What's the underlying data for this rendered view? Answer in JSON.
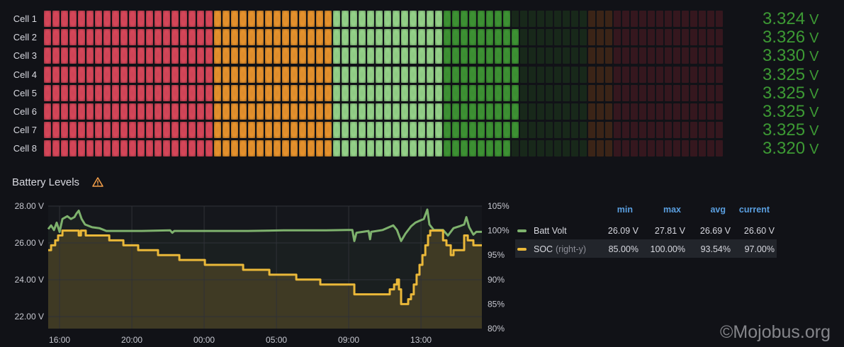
{
  "bar_gauge": {
    "segment_count": 80,
    "bands": [
      {
        "segments": 20,
        "lit": "#d8475a",
        "dim": "#38181f"
      },
      {
        "segments": 14,
        "lit": "#e8932d",
        "dim": "#3b2417"
      },
      {
        "segments": 13,
        "lit": "#96d48a",
        "dim": "#1c2a1c"
      },
      {
        "segments": 17,
        "lit": "#3e9434",
        "dim": "#18281a"
      },
      {
        "segments": 3,
        "lit": "#e8932d",
        "dim": "#3b2417"
      },
      {
        "segments": 13,
        "lit": "#d8475a",
        "dim": "#35171e"
      }
    ],
    "cells": [
      {
        "label": "Cell 1",
        "value": "3.324",
        "unit": "V",
        "lit_segments": 55
      },
      {
        "label": "Cell 2",
        "value": "3.326",
        "unit": "V",
        "lit_segments": 56
      },
      {
        "label": "Cell 3",
        "value": "3.330",
        "unit": "V",
        "lit_segments": 56
      },
      {
        "label": "Cell 4",
        "value": "3.325",
        "unit": "V",
        "lit_segments": 56
      },
      {
        "label": "Cell 5",
        "value": "3.325",
        "unit": "V",
        "lit_segments": 56
      },
      {
        "label": "Cell 6",
        "value": "3.325",
        "unit": "V",
        "lit_segments": 56
      },
      {
        "label": "Cell 7",
        "value": "3.325",
        "unit": "V",
        "lit_segments": 56
      },
      {
        "label": "Cell 8",
        "value": "3.320",
        "unit": "V",
        "lit_segments": 55
      }
    ]
  },
  "panel": {
    "title": "Battery Levels",
    "warning_icon": "warning-triangle-icon"
  },
  "chart_data": {
    "type": "line",
    "title": "Battery Levels",
    "x_unit": "hours after 16:00",
    "xlim": [
      -0.63,
      23.37
    ],
    "x_ticks": [
      {
        "value": 0,
        "label": "16:00"
      },
      {
        "value": 4,
        "label": "20:00"
      },
      {
        "value": 8,
        "label": "00:00"
      },
      {
        "value": 12,
        "label": "05:00"
      },
      {
        "value": 16,
        "label": "09:00"
      },
      {
        "value": 20,
        "label": "13:00"
      }
    ],
    "y_left": {
      "lim": [
        21.35,
        28
      ],
      "ticks": [
        28,
        26,
        24,
        22
      ],
      "labels": [
        "28.00 V",
        "26.00 V",
        "24.00 V",
        "22.00 V"
      ]
    },
    "y_right": {
      "lim": [
        80,
        105
      ],
      "ticks": [
        105,
        100,
        95,
        90,
        85,
        80
      ],
      "labels": [
        "105%",
        "100%",
        "95%",
        "90%",
        "85%",
        "80%"
      ]
    },
    "grid": true,
    "series": [
      {
        "name": "Batt Volt",
        "axis": "left",
        "color": "#7eb26d",
        "points": [
          [
            -0.63,
            26.75
          ],
          [
            -0.47,
            26.95
          ],
          [
            -0.31,
            26.7
          ],
          [
            -0.16,
            27.1
          ],
          [
            0,
            26.6
          ],
          [
            0.16,
            27.3
          ],
          [
            0.43,
            27.45
          ],
          [
            0.63,
            27.3
          ],
          [
            0.82,
            27.4
          ],
          [
            0.94,
            27.6
          ],
          [
            1.06,
            27.75
          ],
          [
            1.22,
            27.3
          ],
          [
            1.41,
            27.0
          ],
          [
            1.8,
            26.85
          ],
          [
            2.2,
            26.8
          ],
          [
            2.59,
            26.65
          ],
          [
            4.55,
            26.65
          ],
          [
            6.12,
            26.68
          ],
          [
            6.24,
            26.55
          ],
          [
            6.35,
            26.65
          ],
          [
            8.47,
            26.65
          ],
          [
            10.43,
            26.65
          ],
          [
            12.39,
            26.68
          ],
          [
            14.75,
            26.68
          ],
          [
            15.92,
            26.7
          ],
          [
            16.2,
            26.7
          ],
          [
            16.31,
            26.1
          ],
          [
            16.43,
            26.55
          ],
          [
            17.1,
            26.65
          ],
          [
            17.18,
            26.2
          ],
          [
            17.25,
            26.6
          ],
          [
            17.88,
            26.7
          ],
          [
            18.47,
            26.95
          ],
          [
            18.67,
            26.7
          ],
          [
            18.9,
            26.1
          ],
          [
            19.14,
            26.5
          ],
          [
            19.45,
            26.9
          ],
          [
            19.69,
            27.1
          ],
          [
            19.92,
            27.2
          ],
          [
            20.16,
            27.3
          ],
          [
            20.35,
            27.81
          ],
          [
            20.47,
            27.0
          ],
          [
            20.71,
            26.7
          ],
          [
            21.22,
            26.7
          ],
          [
            21.49,
            26.4
          ],
          [
            21.8,
            26.8
          ],
          [
            22.12,
            26.9
          ],
          [
            22.39,
            27.0
          ],
          [
            22.51,
            27.4
          ],
          [
            22.67,
            26.85
          ],
          [
            22.9,
            26.45
          ],
          [
            23.06,
            26.6
          ],
          [
            23.37,
            26.6
          ]
        ]
      },
      {
        "name": "SOC",
        "axis": "right",
        "color": "#eab839",
        "step": true,
        "points": [
          [
            -0.63,
            96
          ],
          [
            -0.47,
            97
          ],
          [
            -0.24,
            98
          ],
          [
            -0.08,
            99
          ],
          [
            0.16,
            100
          ],
          [
            1.06,
            99
          ],
          [
            1.18,
            100
          ],
          [
            1.45,
            99
          ],
          [
            2.75,
            98
          ],
          [
            3.53,
            97
          ],
          [
            4.35,
            96
          ],
          [
            5.45,
            95
          ],
          [
            6.63,
            94
          ],
          [
            8.04,
            93
          ],
          [
            10.16,
            92
          ],
          [
            11.61,
            91
          ],
          [
            13.1,
            90
          ],
          [
            14.43,
            89
          ],
          [
            16.31,
            87
          ],
          [
            18.27,
            88
          ],
          [
            18.51,
            89
          ],
          [
            18.67,
            90
          ],
          [
            18.78,
            88
          ],
          [
            18.9,
            85
          ],
          [
            19.29,
            86
          ],
          [
            19.45,
            87
          ],
          [
            19.6,
            89
          ],
          [
            19.76,
            91
          ],
          [
            19.92,
            93
          ],
          [
            20.08,
            95
          ],
          [
            20.24,
            97
          ],
          [
            20.39,
            99
          ],
          [
            20.51,
            100
          ],
          [
            21.22,
            98
          ],
          [
            21.41,
            97
          ],
          [
            21.65,
            95
          ],
          [
            21.8,
            96
          ],
          [
            22.39,
            99
          ],
          [
            22.59,
            98
          ],
          [
            22.9,
            97
          ],
          [
            23.37,
            97
          ]
        ]
      }
    ]
  },
  "legend": {
    "headers": {
      "min": "min",
      "max": "max",
      "avg": "avg",
      "current": "current"
    },
    "rows": [
      {
        "name": "Batt Volt",
        "suffix": "",
        "color": "#7eb26d",
        "min": "26.09 V",
        "max": "27.81 V",
        "avg": "26.69 V",
        "current": "26.60 V"
      },
      {
        "name": "SOC",
        "suffix": "(right-y)",
        "color": "#eab839",
        "min": "85.00%",
        "max": "100.00%",
        "avg": "93.54%",
        "current": "97.00%"
      }
    ]
  },
  "watermark": "©Mojobus.org"
}
